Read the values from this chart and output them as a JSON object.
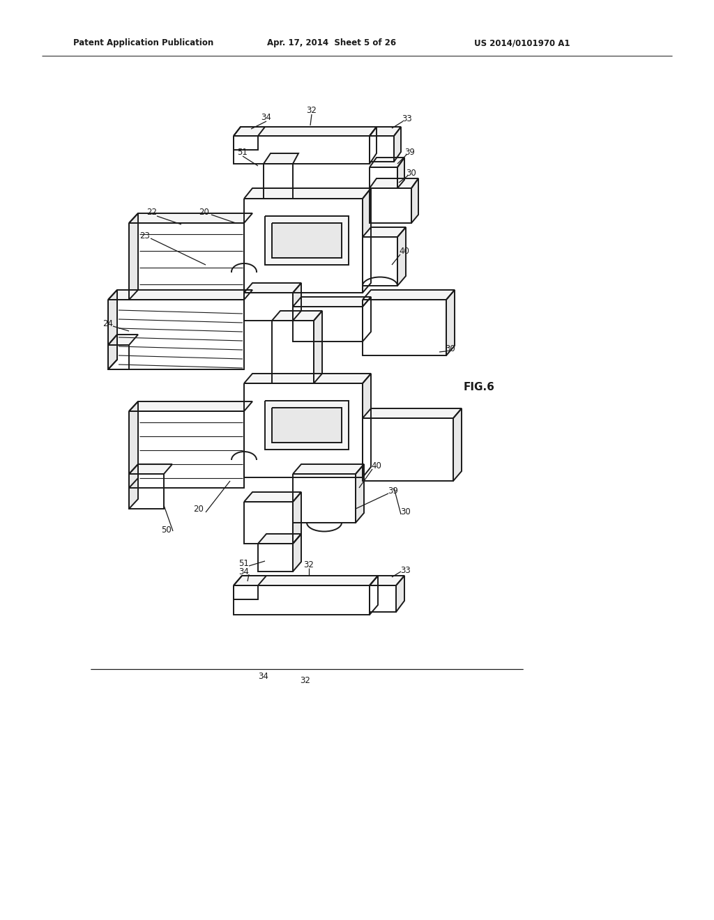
{
  "bg_color": "#ffffff",
  "header_left": "Patent Application Publication",
  "header_center": "Apr. 17, 2014  Sheet 5 of 26",
  "header_right": "US 2014/0101970 A1",
  "fig_label": "FIG.6",
  "line_color": "#1a1a1a",
  "annotation_color": "#1a1a1a",
  "lw_main": 1.4,
  "lw_thin": 0.8,
  "fill_light": "#f5f5f5",
  "fill_mid": "#e8e8e8",
  "fill_dark": "#d5d5d5",
  "fill_white": "#ffffff"
}
